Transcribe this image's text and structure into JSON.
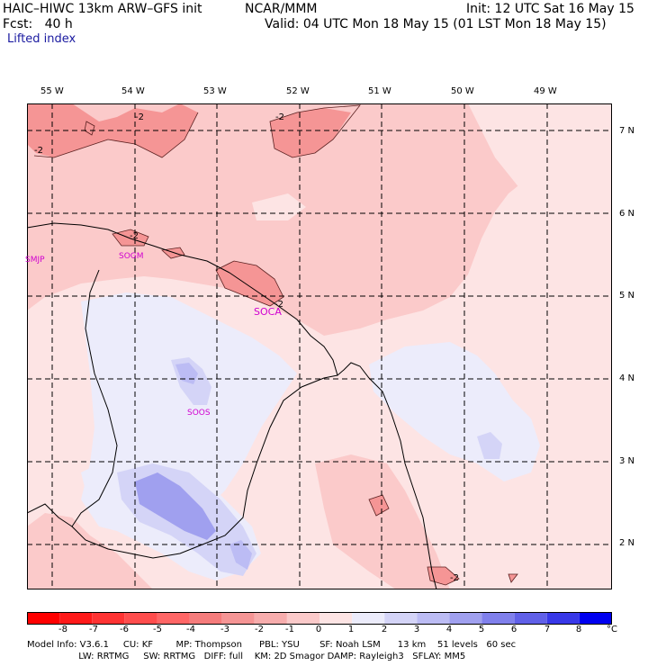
{
  "header": {
    "model": "HAIC–HIWC 13km ARW–GFS init",
    "org": "NCAR/MMM",
    "init": "Init: 12 UTC Sat 16 May 15",
    "fcst": "Fcst:   40 h",
    "valid": "Valid: 04 UTC Mon 18 May 15 (01 LST Mon 18 May 15)",
    "field": "Lifted index"
  },
  "map": {
    "lon_labels": [
      "55 W",
      "54 W",
      "53 W",
      "52 W",
      "51 W",
      "50 W",
      "49 W"
    ],
    "lat_labels": [
      "7 N",
      "6 N",
      "5 N",
      "4 N",
      "3 N",
      "2 N"
    ],
    "stations": [
      "SMJP",
      "SOGM",
      "SOCA",
      "SOOS"
    ],
    "contour_labels": [
      "-2",
      "-2",
      "-2",
      "-2",
      "-2",
      "-2"
    ]
  },
  "legend": {
    "labels": [
      "-8",
      "-7",
      "-6",
      "-5",
      "-4",
      "-3",
      "-2",
      "-1",
      "0",
      "1",
      "2",
      "3",
      "4",
      "5",
      "6",
      "7",
      "8"
    ],
    "unit": "°C",
    "colors": [
      "#ff1a1a",
      "#ff3333",
      "#ff4d4d",
      "#ff6666",
      "#f57c7c",
      "#f59595",
      "#f7adad",
      "#fbcaca",
      "#fde4e4",
      "#ececfb",
      "#d4d4f7",
      "#bcbcf4",
      "#a0a0ef",
      "#8080ec",
      "#6060e8",
      "#3838e8",
      "#0000f0"
    ]
  },
  "footer": {
    "line1": "Model Info: V3.6.1     CU: KF        MP: Thompson      PBL: YSU       SF: Noah LSM      13 km    51 levels   60 sec",
    "line2": "                  LW: RRTMG     SW: RRTMG   DIFF: full    KM: 2D Smagor DAMP: Rayleigh3   SFLAY: MM5"
  }
}
